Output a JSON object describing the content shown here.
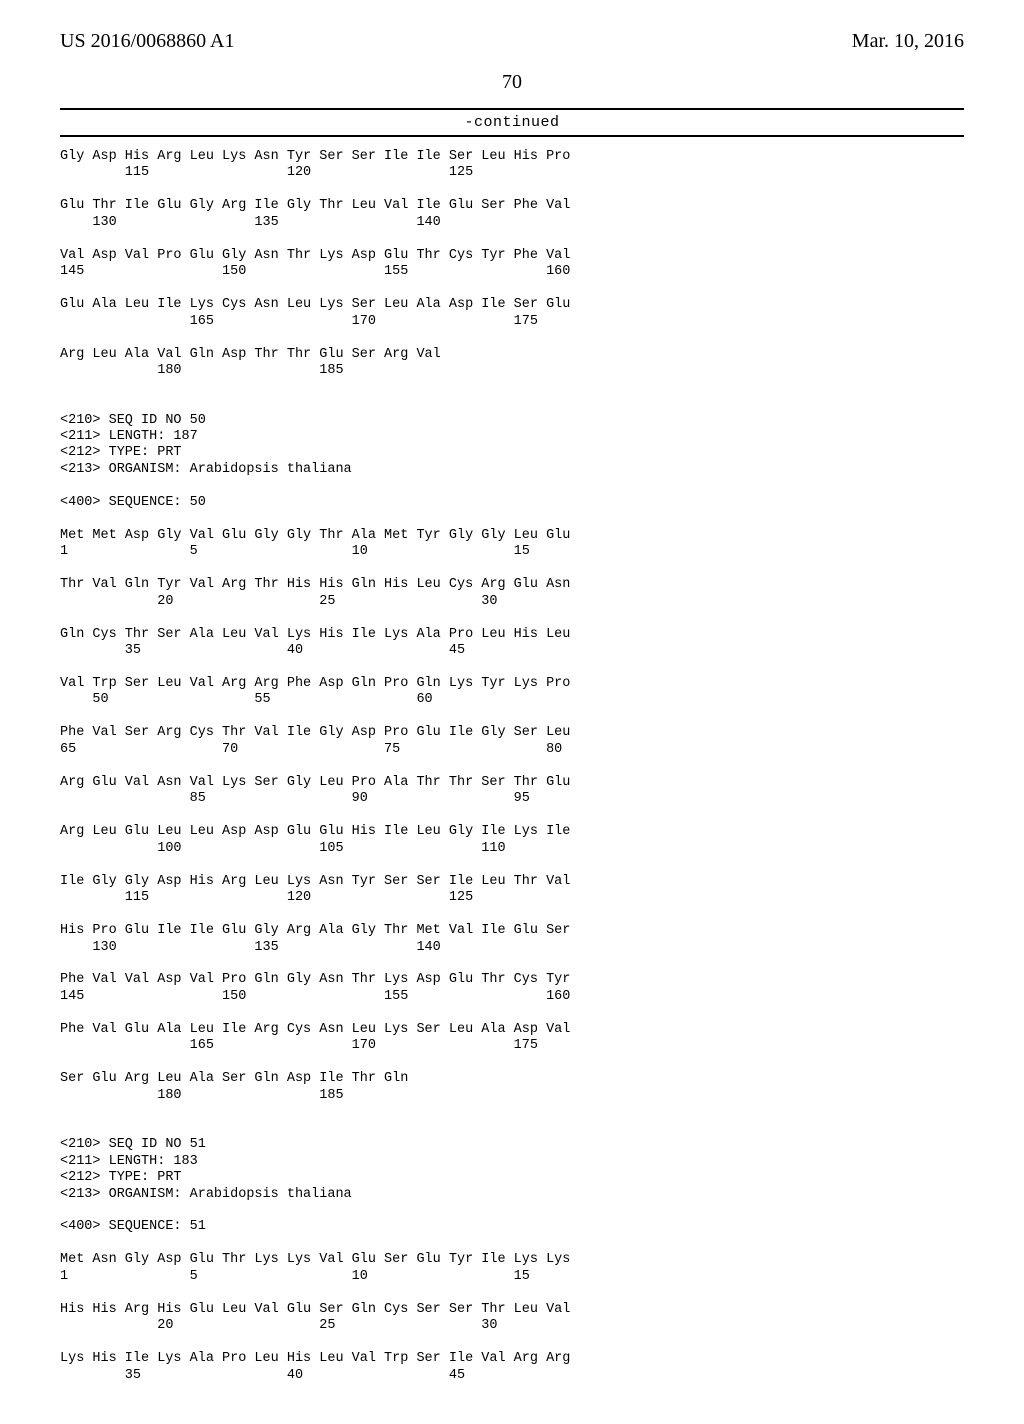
{
  "header": {
    "pub_number": "US 2016/0068860 A1",
    "pub_date": "Mar. 10, 2016"
  },
  "page_number": "70",
  "continued_label": "-continued",
  "sequence_text": "Gly Asp His Arg Leu Lys Asn Tyr Ser Ser Ile Ile Ser Leu His Pro\n        115                 120                 125\n\nGlu Thr Ile Glu Gly Arg Ile Gly Thr Leu Val Ile Glu Ser Phe Val\n    130                 135                 140\n\nVal Asp Val Pro Glu Gly Asn Thr Lys Asp Glu Thr Cys Tyr Phe Val\n145                 150                 155                 160\n\nGlu Ala Leu Ile Lys Cys Asn Leu Lys Ser Leu Ala Asp Ile Ser Glu\n                165                 170                 175\n\nArg Leu Ala Val Gln Asp Thr Thr Glu Ser Arg Val\n            180                 185\n\n\n<210> SEQ ID NO 50\n<211> LENGTH: 187\n<212> TYPE: PRT\n<213> ORGANISM: Arabidopsis thaliana\n\n<400> SEQUENCE: 50\n\nMet Met Asp Gly Val Glu Gly Gly Thr Ala Met Tyr Gly Gly Leu Glu\n1               5                   10                  15\n\nThr Val Gln Tyr Val Arg Thr His His Gln His Leu Cys Arg Glu Asn\n            20                  25                  30\n\nGln Cys Thr Ser Ala Leu Val Lys His Ile Lys Ala Pro Leu His Leu\n        35                  40                  45\n\nVal Trp Ser Leu Val Arg Arg Phe Asp Gln Pro Gln Lys Tyr Lys Pro\n    50                  55                  60\n\nPhe Val Ser Arg Cys Thr Val Ile Gly Asp Pro Glu Ile Gly Ser Leu\n65                  70                  75                  80\n\nArg Glu Val Asn Val Lys Ser Gly Leu Pro Ala Thr Thr Ser Thr Glu\n                85                  90                  95\n\nArg Leu Glu Leu Leu Asp Asp Glu Glu His Ile Leu Gly Ile Lys Ile\n            100                 105                 110\n\nIle Gly Gly Asp His Arg Leu Lys Asn Tyr Ser Ser Ile Leu Thr Val\n        115                 120                 125\n\nHis Pro Glu Ile Ile Glu Gly Arg Ala Gly Thr Met Val Ile Glu Ser\n    130                 135                 140\n\nPhe Val Val Asp Val Pro Gln Gly Asn Thr Lys Asp Glu Thr Cys Tyr\n145                 150                 155                 160\n\nPhe Val Glu Ala Leu Ile Arg Cys Asn Leu Lys Ser Leu Ala Asp Val\n                165                 170                 175\n\nSer Glu Arg Leu Ala Ser Gln Asp Ile Thr Gln\n            180                 185\n\n\n<210> SEQ ID NO 51\n<211> LENGTH: 183\n<212> TYPE: PRT\n<213> ORGANISM: Arabidopsis thaliana\n\n<400> SEQUENCE: 51\n\nMet Asn Gly Asp Glu Thr Lys Lys Val Glu Ser Glu Tyr Ile Lys Lys\n1               5                   10                  15\n\nHis His Arg His Glu Leu Val Glu Ser Gln Cys Ser Ser Thr Leu Val\n            20                  25                  30\n\nLys His Ile Lys Ala Pro Leu His Leu Val Trp Ser Ile Val Arg Arg\n        35                  40                  45"
}
